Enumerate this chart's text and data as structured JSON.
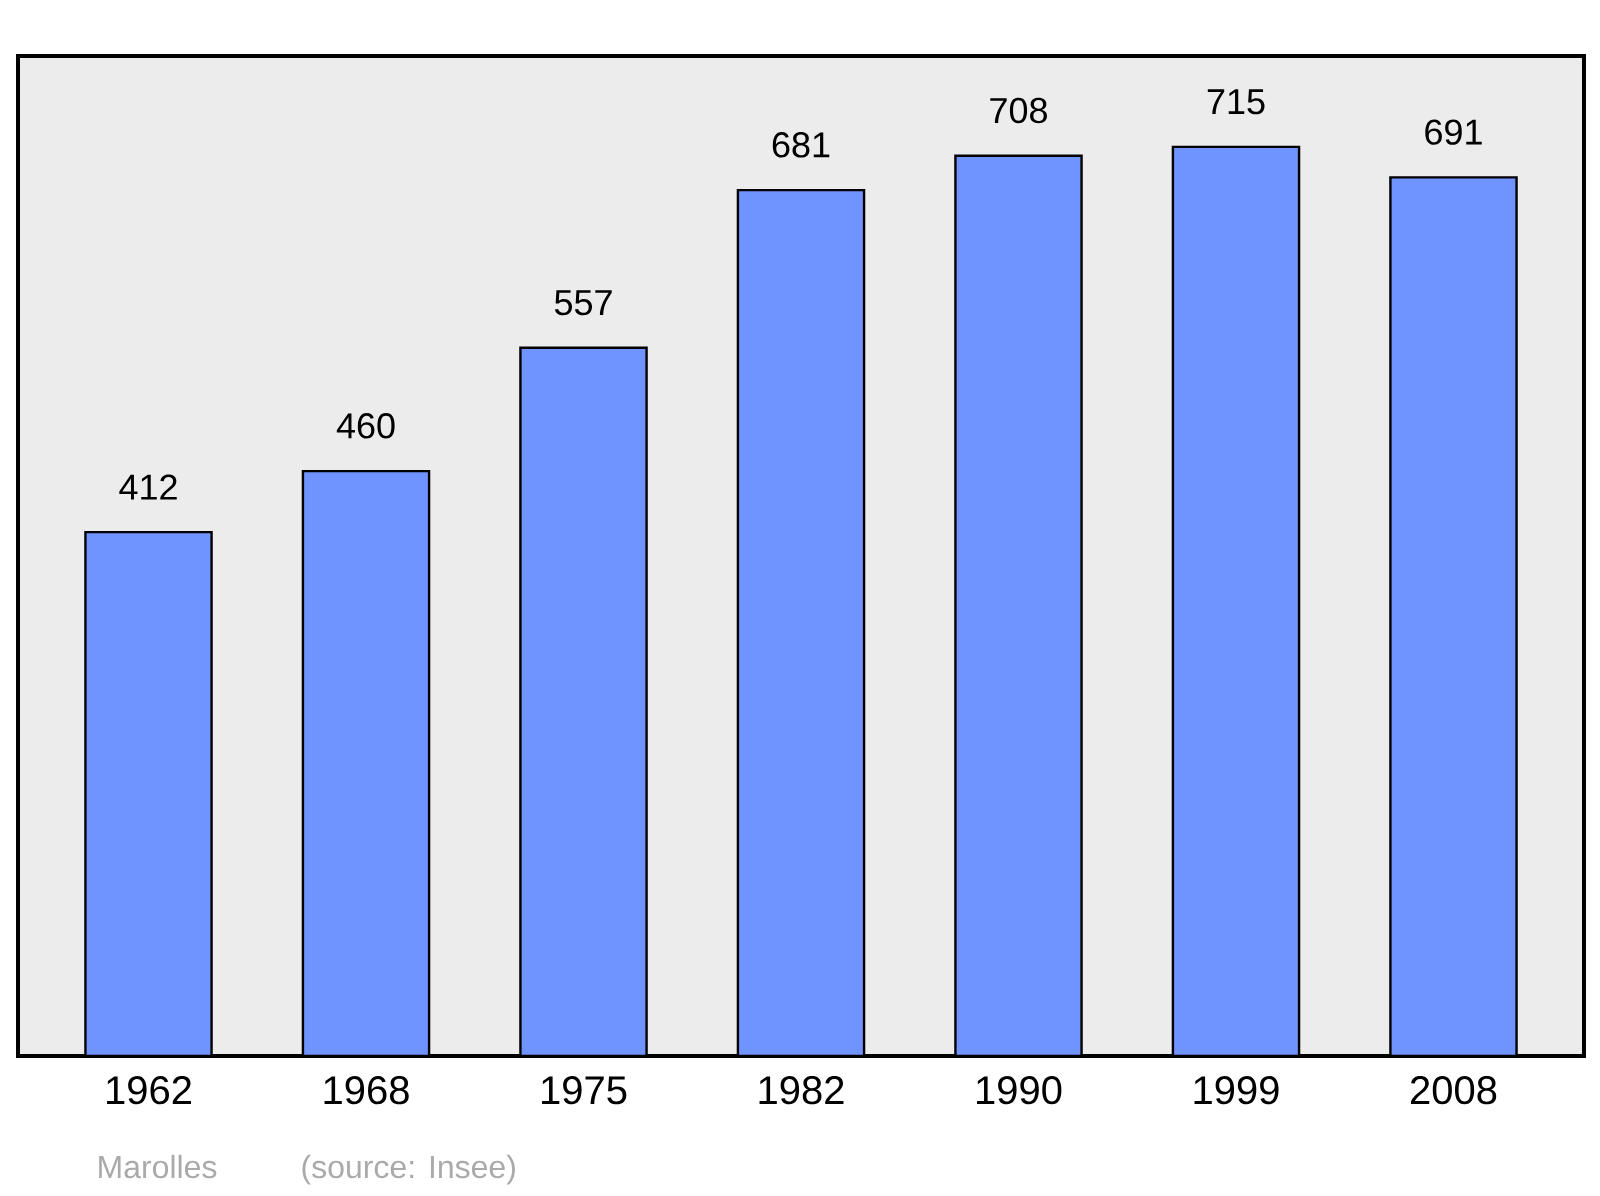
{
  "chart_data": {
    "type": "bar",
    "categories": [
      "1962",
      "1968",
      "1975",
      "1982",
      "1990",
      "1999",
      "2008"
    ],
    "values": [
      412,
      460,
      557,
      681,
      708,
      715,
      691
    ],
    "color": "#7094ff",
    "data_labels": true,
    "annotations": [
      "Marolles",
      "(source: Insee)"
    ]
  }
}
